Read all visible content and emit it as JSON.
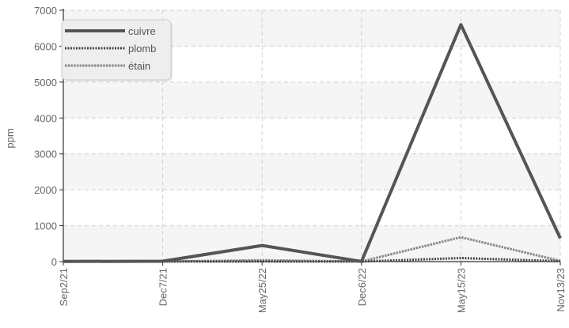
{
  "chart_data": {
    "type": "line",
    "categories": [
      "Sep2/21",
      "Dec7/21",
      "May25/22",
      "Dec6/22",
      "May15/23",
      "Nov13/23"
    ],
    "ylabel": "ppm",
    "xlabel": "",
    "title": "",
    "ylim": [
      0,
      7000
    ],
    "yticks": [
      0,
      1000,
      2000,
      3000,
      4000,
      5000,
      6000,
      7000
    ],
    "grid": true,
    "legend_position": "top-left",
    "series": [
      {
        "name": "cuivre",
        "values": [
          5,
          10,
          450,
          5,
          6600,
          650
        ],
        "color": "#555555",
        "style": "solid"
      },
      {
        "name": "plomb",
        "values": [
          2,
          2,
          5,
          2,
          100,
          10
        ],
        "color": "#444444",
        "style": "dotted"
      },
      {
        "name": "étain",
        "values": [
          2,
          2,
          40,
          2,
          680,
          20
        ],
        "color": "#888888",
        "style": "dashed"
      }
    ]
  }
}
